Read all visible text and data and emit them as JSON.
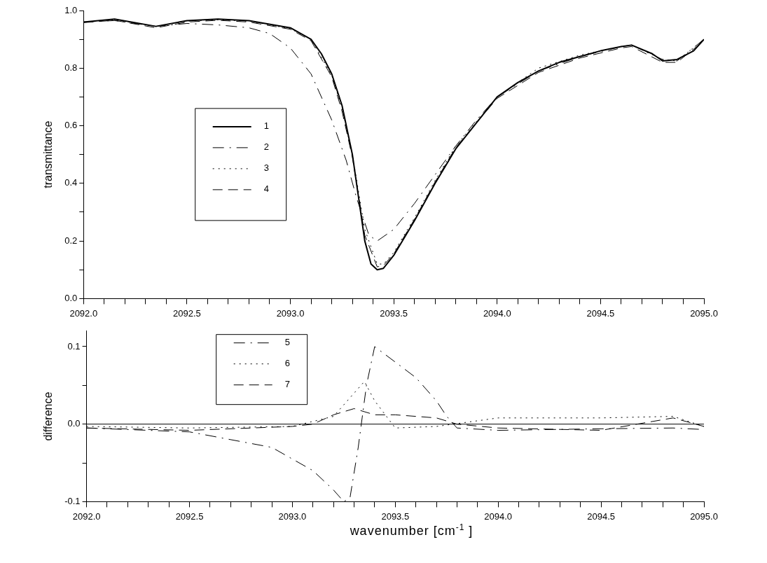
{
  "chart_data": [
    {
      "type": "line",
      "ylabel": "transmittance",
      "xlim": [
        2092,
        2095
      ],
      "ylim": [
        0,
        1
      ],
      "xticks": [
        {
          "value": 2092,
          "label": "2092.0"
        },
        {
          "value": 2092.1,
          "label": null
        },
        {
          "value": 2092.2,
          "label": null
        },
        {
          "value": 2092.3,
          "label": null
        },
        {
          "value": 2092.4,
          "label": null
        },
        {
          "value": 2092.5,
          "label": "2092.5"
        },
        {
          "value": 2092.6,
          "label": null
        },
        {
          "value": 2092.7,
          "label": null
        },
        {
          "value": 2092.8,
          "label": null
        },
        {
          "value": 2092.9,
          "label": null
        },
        {
          "value": 2093.0,
          "label": "2093.0"
        },
        {
          "value": 2093.1,
          "label": null
        },
        {
          "value": 2093.2,
          "label": null
        },
        {
          "value": 2093.3,
          "label": null
        },
        {
          "value": 2093.4,
          "label": null
        },
        {
          "value": 2093.5,
          "label": "2093.5"
        },
        {
          "value": 2093.6,
          "label": null
        },
        {
          "value": 2093.7,
          "label": null
        },
        {
          "value": 2093.8,
          "label": null
        },
        {
          "value": 2093.9,
          "label": null
        },
        {
          "value": 2094.0,
          "label": "2094.0"
        },
        {
          "value": 2094.1,
          "label": null
        },
        {
          "value": 2094.2,
          "label": null
        },
        {
          "value": 2094.3,
          "label": null
        },
        {
          "value": 2094.4,
          "label": null
        },
        {
          "value": 2094.5,
          "label": "2094.5"
        },
        {
          "value": 2094.6,
          "label": null
        },
        {
          "value": 2094.7,
          "label": null
        },
        {
          "value": 2094.8,
          "label": null
        },
        {
          "value": 2094.9,
          "label": null
        },
        {
          "value": 2095.0,
          "label": "2095.0"
        }
      ],
      "yticks": [
        {
          "value": 0,
          "label": "0.0"
        },
        {
          "value": 0.1,
          "label": null
        },
        {
          "value": 0.2,
          "label": "0.2"
        },
        {
          "value": 0.3,
          "label": null
        },
        {
          "value": 0.4,
          "label": "0.4"
        },
        {
          "value": 0.5,
          "label": null
        },
        {
          "value": 0.6,
          "label": "0.6"
        },
        {
          "value": 0.7,
          "label": null
        },
        {
          "value": 0.8,
          "label": "0.8"
        },
        {
          "value": 0.9,
          "label": null
        },
        {
          "value": 1,
          "label": "1.0"
        }
      ],
      "grid": false,
      "legend": "left",
      "marker": "none",
      "series": [
        {
          "name": "1",
          "color": "#000000",
          "line_style": "solid",
          "x": [
            2092.0,
            2092.15,
            2092.35,
            2092.5,
            2092.65,
            2092.8,
            2093.0,
            2093.1,
            2093.15,
            2093.2,
            2093.25,
            2093.3,
            2093.33,
            2093.36,
            2093.39,
            2093.42,
            2093.45,
            2093.5,
            2093.6,
            2093.7,
            2093.8,
            2093.9,
            2094.0,
            2094.1,
            2094.2,
            2094.3,
            2094.4,
            2094.5,
            2094.6,
            2094.65,
            2094.75,
            2094.8,
            2094.87,
            2094.95,
            2095.0
          ],
          "values": [
            0.96,
            0.97,
            0.945,
            0.965,
            0.97,
            0.965,
            0.94,
            0.9,
            0.85,
            0.78,
            0.67,
            0.5,
            0.35,
            0.2,
            0.12,
            0.1,
            0.105,
            0.15,
            0.27,
            0.4,
            0.52,
            0.61,
            0.7,
            0.75,
            0.79,
            0.82,
            0.84,
            0.86,
            0.875,
            0.88,
            0.85,
            0.825,
            0.83,
            0.86,
            0.9
          ]
        },
        {
          "name": "2",
          "color": "#000000",
          "line_style": "dashdot",
          "x": [
            2092.0,
            2092.15,
            2092.35,
            2092.5,
            2092.65,
            2092.8,
            2092.9,
            2093.0,
            2093.1,
            2093.2,
            2093.27,
            2093.32,
            2093.38,
            2093.42,
            2093.5,
            2093.6,
            2093.7,
            2093.8,
            2093.9,
            2094.0,
            2094.2,
            2094.4,
            2094.6,
            2094.65,
            2094.8,
            2094.87,
            2095.0
          ],
          "values": [
            0.96,
            0.965,
            0.945,
            0.955,
            0.95,
            0.94,
            0.92,
            0.87,
            0.78,
            0.62,
            0.48,
            0.35,
            0.22,
            0.2,
            0.24,
            0.33,
            0.43,
            0.53,
            0.62,
            0.7,
            0.79,
            0.84,
            0.875,
            0.88,
            0.83,
            0.825,
            0.9
          ]
        },
        {
          "name": "3",
          "color": "#000000",
          "line_style": "dotted",
          "x": [
            2092.0,
            2092.15,
            2092.35,
            2092.5,
            2092.65,
            2092.8,
            2093.0,
            2093.1,
            2093.2,
            2093.25,
            2093.3,
            2093.36,
            2093.42,
            2093.45,
            2093.5,
            2093.6,
            2093.7,
            2093.8,
            2094.0,
            2094.2,
            2094.4,
            2094.6,
            2094.65,
            2094.8,
            2094.87,
            2095.0
          ],
          "values": [
            0.96,
            0.968,
            0.945,
            0.963,
            0.968,
            0.963,
            0.937,
            0.9,
            0.775,
            0.66,
            0.5,
            0.24,
            0.12,
            0.12,
            0.16,
            0.28,
            0.41,
            0.53,
            0.7,
            0.8,
            0.845,
            0.875,
            0.88,
            0.83,
            0.825,
            0.9
          ]
        },
        {
          "name": "4",
          "color": "#000000",
          "line_style": "dashed",
          "x": [
            2092.0,
            2092.15,
            2092.35,
            2092.5,
            2092.65,
            2092.8,
            2093.0,
            2093.1,
            2093.2,
            2093.25,
            2093.3,
            2093.36,
            2093.42,
            2093.45,
            2093.5,
            2093.6,
            2093.7,
            2093.8,
            2094.0,
            2094.2,
            2094.4,
            2094.6,
            2094.65,
            2094.8,
            2094.87,
            2095.0
          ],
          "values": [
            0.958,
            0.966,
            0.94,
            0.96,
            0.966,
            0.96,
            0.935,
            0.895,
            0.77,
            0.65,
            0.49,
            0.22,
            0.11,
            0.115,
            0.155,
            0.275,
            0.405,
            0.525,
            0.695,
            0.785,
            0.835,
            0.87,
            0.875,
            0.82,
            0.82,
            0.895
          ]
        }
      ]
    },
    {
      "type": "line",
      "xlabel": "wavenumber [cm$^{-1}$ ]",
      "ylabel": "difference",
      "xlim": [
        2092,
        2095
      ],
      "ylim": [
        -0.1,
        0.12
      ],
      "xticks": [
        {
          "value": 2092,
          "label": "2092.0"
        },
        {
          "value": 2092.1,
          "label": null
        },
        {
          "value": 2092.2,
          "label": null
        },
        {
          "value": 2092.3,
          "label": null
        },
        {
          "value": 2092.4,
          "label": null
        },
        {
          "value": 2092.5,
          "label": "2092.5"
        },
        {
          "value": 2092.6,
          "label": null
        },
        {
          "value": 2092.7,
          "label": null
        },
        {
          "value": 2092.8,
          "label": null
        },
        {
          "value": 2092.9,
          "label": null
        },
        {
          "value": 2093.0,
          "label": "2093.0"
        },
        {
          "value": 2093.1,
          "label": null
        },
        {
          "value": 2093.2,
          "label": null
        },
        {
          "value": 2093.3,
          "label": null
        },
        {
          "value": 2093.4,
          "label": null
        },
        {
          "value": 2093.5,
          "label": "2093.5"
        },
        {
          "value": 2093.6,
          "label": null
        },
        {
          "value": 2093.7,
          "label": null
        },
        {
          "value": 2093.8,
          "label": null
        },
        {
          "value": 2093.9,
          "label": null
        },
        {
          "value": 2094.0,
          "label": "2094.0"
        },
        {
          "value": 2094.1,
          "label": null
        },
        {
          "value": 2094.2,
          "label": null
        },
        {
          "value": 2094.3,
          "label": null
        },
        {
          "value": 2094.4,
          "label": null
        },
        {
          "value": 2094.5,
          "label": "2094.5"
        },
        {
          "value": 2094.6,
          "label": null
        },
        {
          "value": 2094.7,
          "label": null
        },
        {
          "value": 2094.8,
          "label": null
        },
        {
          "value": 2094.9,
          "label": null
        },
        {
          "value": 2095.0,
          "label": "2095.0"
        }
      ],
      "yticks": [
        -0.1,
        {
          "value": -0.05,
          "label": null
        },
        {
          "value": 0,
          "label": "0.0"
        },
        {
          "value": 0.05,
          "label": null
        },
        0.1
      ],
      "grid": false,
      "legend": "top left",
      "marker": "none",
      "ref_lines": [
        {
          "axis": "y",
          "value": 0,
          "color": "#000000"
        }
      ],
      "series": [
        {
          "name": "5",
          "color": "#000000",
          "line_style": "dashdot",
          "x": [
            2092.0,
            2092.3,
            2092.5,
            2092.7,
            2092.9,
            2093.0,
            2093.1,
            2093.2,
            2093.25,
            2093.28,
            2093.32,
            2093.36,
            2093.4,
            2093.5,
            2093.6,
            2093.7,
            2093.75,
            2093.8,
            2094.0,
            2094.5,
            2094.85,
            2095.0
          ],
          "values": [
            -0.005,
            -0.008,
            -0.01,
            -0.02,
            -0.03,
            -0.045,
            -0.06,
            -0.085,
            -0.1,
            -0.095,
            -0.03,
            0.05,
            0.1,
            0.08,
            0.06,
            0.03,
            0.01,
            -0.005,
            -0.008,
            -0.006,
            -0.005,
            -0.007
          ]
        },
        {
          "name": "6",
          "color": "#000000",
          "line_style": "dotted",
          "x": [
            2092.0,
            2092.5,
            2093.0,
            2093.2,
            2093.3,
            2093.35,
            2093.4,
            2093.5,
            2093.7,
            2094.0,
            2094.5,
            2094.85,
            2095.0
          ],
          "values": [
            -0.003,
            -0.005,
            -0.003,
            0.01,
            0.04,
            0.055,
            0.03,
            -0.005,
            -0.003,
            0.008,
            0.008,
            0.01,
            -0.003
          ]
        },
        {
          "name": "7",
          "color": "#000000",
          "line_style": "dashed",
          "x": [
            2092.0,
            2092.5,
            2093.0,
            2093.1,
            2093.2,
            2093.3,
            2093.4,
            2093.5,
            2093.7,
            2093.8,
            2094.0,
            2094.5,
            2094.85,
            2095.0
          ],
          "values": [
            -0.005,
            -0.008,
            -0.003,
            0,
            0.012,
            0.02,
            0.012,
            0.012,
            0.008,
            0,
            -0.005,
            -0.008,
            0.008,
            -0.003
          ]
        }
      ]
    }
  ]
}
